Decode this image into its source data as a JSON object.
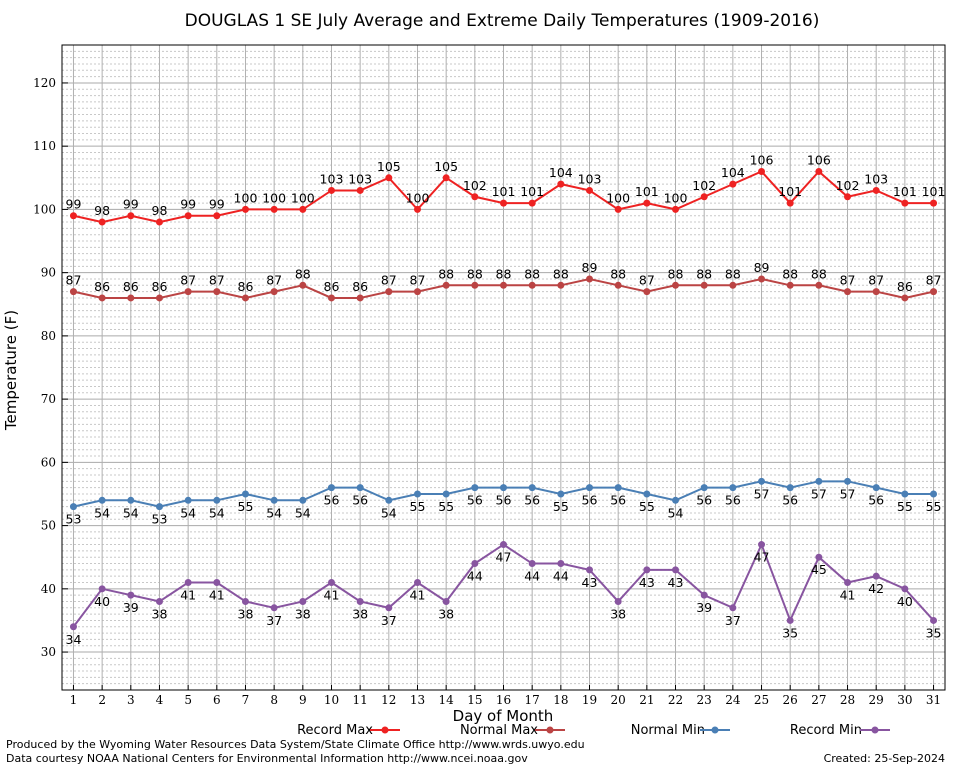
{
  "chart_data": {
    "type": "line",
    "title": "DOUGLAS 1 SE July Average and Extreme Daily Temperatures (1909-2016)",
    "xlabel": "Day of Month",
    "ylabel": "Temperature (F)",
    "ylim": [
      24,
      126
    ],
    "xlim": [
      0.6,
      31.4
    ],
    "y_ticks": [
      30,
      40,
      50,
      60,
      70,
      80,
      90,
      100,
      110,
      120
    ],
    "grid": true,
    "legend_position": "bottom",
    "x": [
      1,
      2,
      3,
      4,
      5,
      6,
      7,
      8,
      9,
      10,
      11,
      12,
      13,
      14,
      15,
      16,
      17,
      18,
      19,
      20,
      21,
      22,
      23,
      24,
      25,
      26,
      27,
      28,
      29,
      30,
      31
    ],
    "series": [
      {
        "name": "Record Max",
        "color": "#ee2222",
        "label_pos": "above",
        "values": [
          99,
          98,
          99,
          98,
          99,
          99,
          100,
          100,
          100,
          103,
          103,
          105,
          100,
          105,
          102,
          101,
          101,
          104,
          103,
          100,
          101,
          100,
          102,
          104,
          106,
          101,
          106,
          102,
          103,
          101,
          101
        ]
      },
      {
        "name": "Normal Max",
        "color": "#bb4444",
        "label_pos": "above",
        "values": [
          87,
          86,
          86,
          86,
          87,
          87,
          86,
          87,
          88,
          86,
          86,
          87,
          87,
          88,
          88,
          88,
          88,
          88,
          89,
          88,
          87,
          88,
          88,
          88,
          89,
          88,
          88,
          87,
          87,
          86,
          87
        ]
      },
      {
        "name": "Normal Min",
        "color": "#4a7fb5",
        "label_pos": "below",
        "values": [
          53,
          54,
          54,
          53,
          54,
          54,
          55,
          54,
          54,
          56,
          56,
          54,
          55,
          55,
          56,
          56,
          56,
          55,
          56,
          56,
          55,
          54,
          56,
          56,
          57,
          56,
          57,
          57,
          56,
          55,
          55
        ]
      },
      {
        "name": "Record Min",
        "color": "#8855a0",
        "label_pos": "below",
        "values": [
          34,
          40,
          39,
          38,
          41,
          41,
          38,
          37,
          38,
          41,
          38,
          37,
          41,
          38,
          44,
          47,
          44,
          44,
          43,
          38,
          43,
          43,
          39,
          37,
          47,
          35,
          45,
          41,
          42,
          40,
          35
        ]
      }
    ]
  },
  "footer": {
    "line1": "Produced by the Wyoming Water Resources Data System/State Climate Office http://www.wrds.uwyo.edu",
    "line2": "Data courtesy NOAA National Centers for Environmental Information http://www.ncei.noaa.gov",
    "created": "Created:  25-Sep-2024"
  }
}
